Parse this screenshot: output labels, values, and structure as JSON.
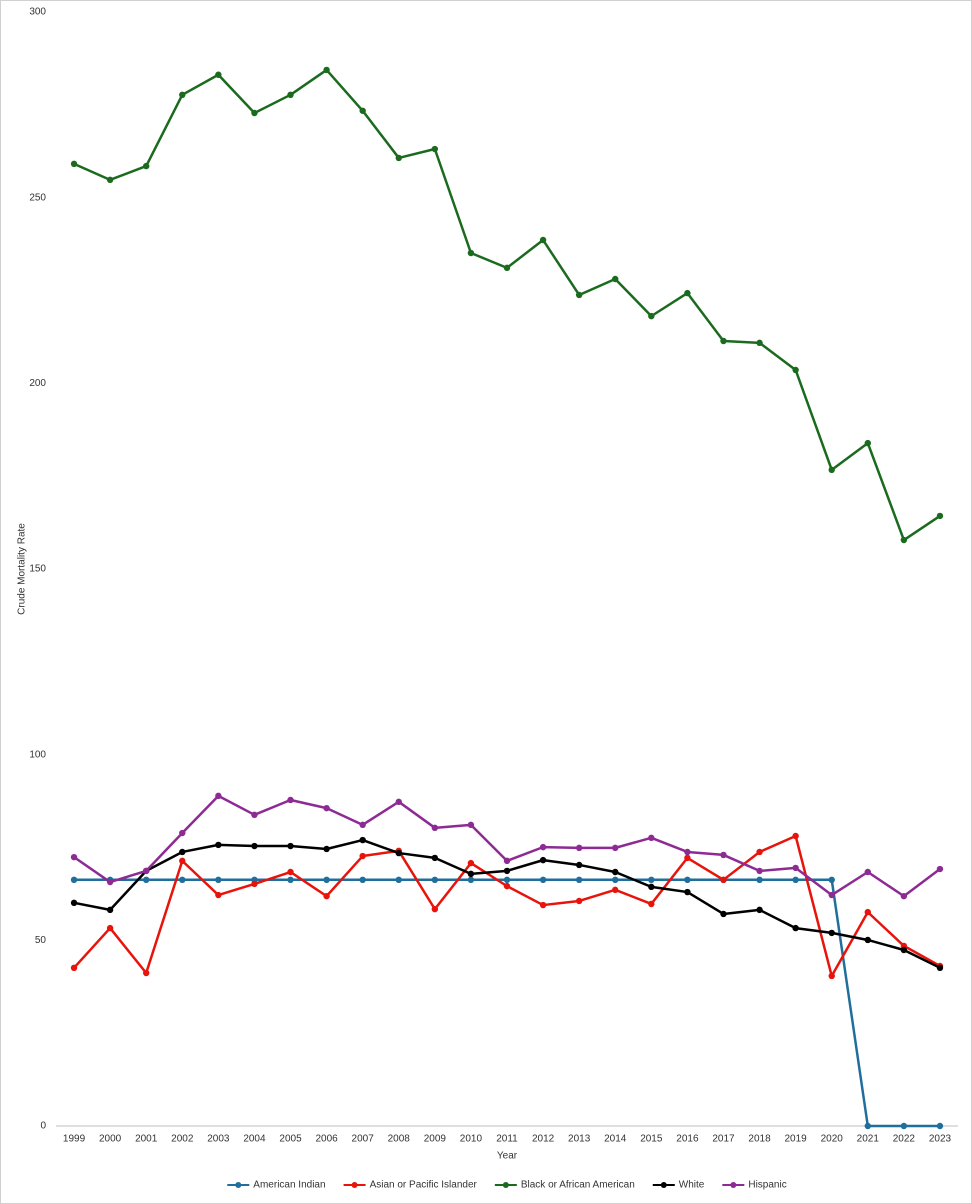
{
  "chart_data": {
    "type": "line",
    "x_label": "Year",
    "y_label": "Crude Mortality Rate",
    "categories": [
      "1999",
      "2000",
      "2001",
      "2002",
      "2003",
      "2004",
      "2005",
      "2006",
      "2007",
      "2008",
      "2009",
      "2010",
      "2011",
      "2012",
      "2013",
      "2014",
      "2015",
      "2016",
      "2017",
      "2018",
      "2019",
      "2020",
      "2021",
      "2022",
      "2023"
    ],
    "series": [
      {
        "name": "American Indian",
        "color": "#1f6e9c",
        "values": [
          66.3,
          66.3,
          66.3,
          66.3,
          66.3,
          66.3,
          66.3,
          66.3,
          66.3,
          66.3,
          66.3,
          66.3,
          66.3,
          66.3,
          66.3,
          66.3,
          66.3,
          66.3,
          66.3,
          66.3,
          66.3,
          66.3,
          0,
          0,
          0
        ]
      },
      {
        "name": "Asian or Pacific Islander",
        "color": "#e8140c",
        "values": [
          42.6,
          53.3,
          41.2,
          71.4,
          62.2,
          65.2,
          68.4,
          61.9,
          72.7,
          74.1,
          58.4,
          70.8,
          64.6,
          59.5,
          60.6,
          63.6,
          59.8,
          72.2,
          66.3,
          73.8,
          78.1,
          40.4,
          57.6,
          48.5,
          43.1
        ]
      },
      {
        "name": "Black or African American",
        "color": "#1a6b1e",
        "values": [
          259.1,
          254.8,
          258.5,
          277.7,
          283.1,
          272.8,
          277.7,
          284.4,
          273.4,
          260.7,
          263.1,
          235.1,
          231.1,
          238.6,
          223.8,
          228.1,
          218.1,
          224.3,
          211.4,
          210.9,
          203.6,
          176.7,
          183.9,
          157.8,
          164.3
        ]
      },
      {
        "name": "White",
        "color": "#000000",
        "values": [
          60.1,
          58.2,
          68.7,
          73.8,
          75.7,
          75.4,
          75.4,
          74.6,
          77.0,
          73.5,
          72.2,
          67.9,
          68.7,
          71.6,
          70.3,
          68.4,
          64.4,
          63.0,
          57.1,
          58.2,
          53.3,
          52.0,
          50.1,
          47.4,
          42.6
        ]
      },
      {
        "name": "Hispanic",
        "color": "#8e2a94",
        "values": [
          72.4,
          65.7,
          68.7,
          78.9,
          88.9,
          83.8,
          87.8,
          85.6,
          81.1,
          87.3,
          80.3,
          81.1,
          71.4,
          75.1,
          74.9,
          74.9,
          77.6,
          73.8,
          73.0,
          68.7,
          69.5,
          62.2,
          68.4,
          61.9,
          69.2
        ]
      }
    ],
    "ylim": [
      0,
      300
    ],
    "yticks": [
      0,
      50,
      100,
      150,
      200,
      250,
      300
    ],
    "grid": false,
    "legend": "bottom"
  }
}
